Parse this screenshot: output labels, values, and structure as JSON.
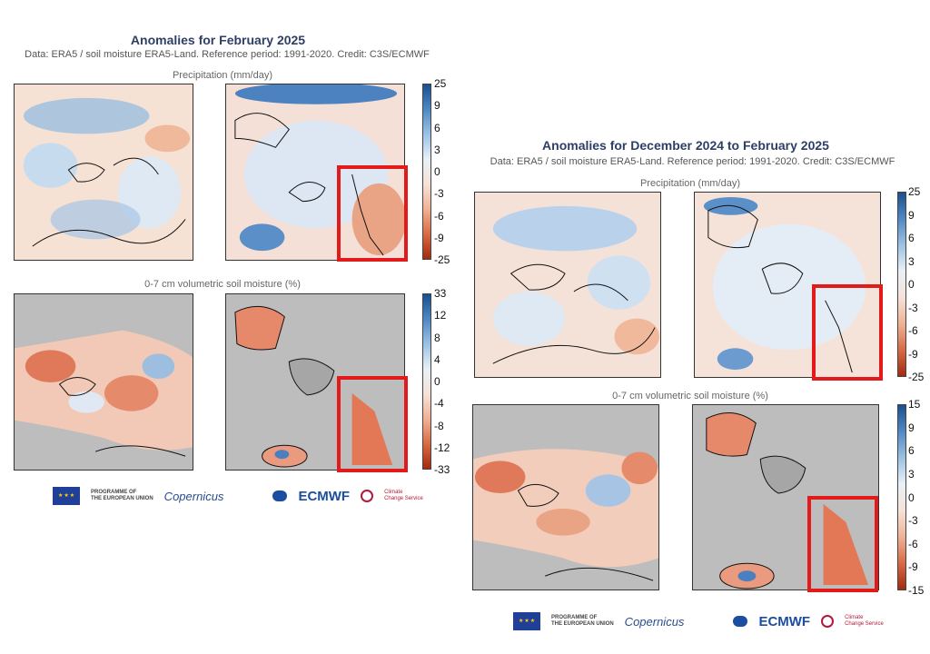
{
  "left": {
    "title": "Anomalies for February 2025",
    "subtitle": "Data: ERA5 / soil moisture ERA5-Land.  Reference period: 1991-2020.  Credit: C3S/ECMWF",
    "precip_label": "Precipitation (mm/day)",
    "soil_label": "0-7 cm volumetric soil moisture (%)",
    "precip_ticks": [
      "25",
      "9",
      "6",
      "3",
      "0",
      "-3",
      "-6",
      "-9",
      "-25"
    ],
    "soil_ticks": [
      "33",
      "12",
      "8",
      "4",
      "0",
      "-4",
      "-8",
      "-12",
      "-33"
    ]
  },
  "right": {
    "title": "Anomalies for December 2024 to February 2025",
    "subtitle": "Data: ERA5 / soil moisture ERA5-Land.  Reference period: 1991-2020.  Credit: C3S/ECMWF",
    "precip_label": "Precipitation (mm/day)",
    "soil_label": "0-7 cm volumetric soil moisture (%)",
    "precip_ticks": [
      "25",
      "9",
      "6",
      "3",
      "0",
      "-3",
      "-6",
      "-9",
      "-25"
    ],
    "soil_ticks": [
      "15",
      "9",
      "6",
      "3",
      "0",
      "-3",
      "-6",
      "-9",
      "-15"
    ]
  },
  "logos": {
    "eu_line1": "PROGRAMME OF",
    "eu_line2": "THE EUROPEAN UNION",
    "copernicus": "opernicus",
    "ecmwf": "ECMWF",
    "c3s_line1": "Climate",
    "c3s_line2": "Change Service"
  },
  "colors": {
    "wet_blue": "#2e6bb0",
    "dry_red": "#c23a1a",
    "land_mask": "#bdbdbd",
    "highlight": "#e21a1a"
  }
}
